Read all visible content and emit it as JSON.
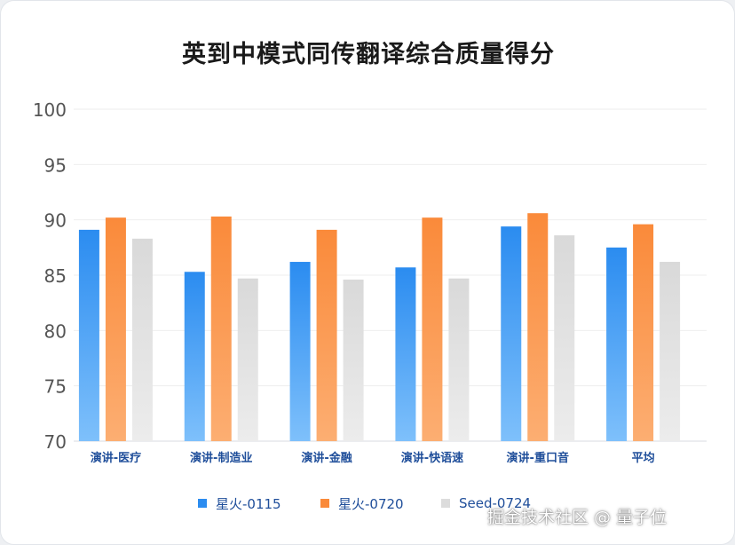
{
  "chart_data": {
    "type": "bar",
    "title": "英到中模式同传翻译综合质量得分",
    "categories": [
      "演讲-医疗",
      "演讲-制造业",
      "演讲-金融",
      "演讲-快语速",
      "演讲-重口音",
      "平均"
    ],
    "series": [
      {
        "name": "星火-0115",
        "values": [
          89.1,
          85.3,
          86.2,
          85.7,
          89.4,
          87.5
        ],
        "color": "#2b8cf0"
      },
      {
        "name": "星火-0720",
        "values": [
          90.2,
          90.3,
          89.1,
          90.2,
          90.6,
          89.6
        ],
        "color": "#fa8a3a"
      },
      {
        "name": "Seed-0724",
        "values": [
          88.3,
          84.7,
          84.6,
          84.7,
          88.6,
          86.2
        ],
        "color": "#dcdcdc"
      }
    ],
    "ylim": [
      70,
      100
    ],
    "yticks": [
      70,
      75,
      80,
      85,
      90,
      95,
      100
    ],
    "grid": true,
    "legend_position": "bottom"
  },
  "watermark": "掘金技术社区 @ 量子位"
}
